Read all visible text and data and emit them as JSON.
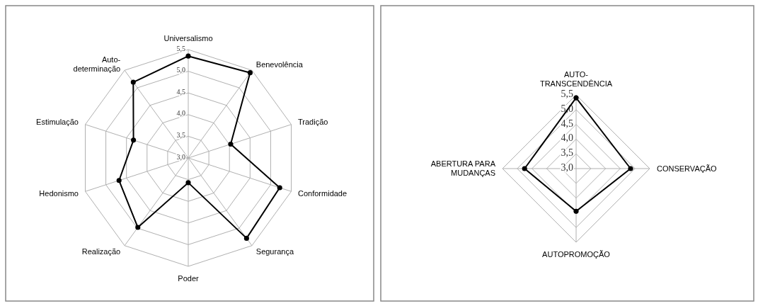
{
  "chart_data": [
    {
      "type": "radar",
      "categories": [
        "Universalismo",
        "Benevolência",
        "Tradição",
        "Conformidade",
        "Segurança",
        "Poder",
        "Realização",
        "Hedonismo",
        "Estimulação",
        "Auto-\ndeterminação"
      ],
      "series": [
        {
          "color": "#000000",
          "values": [
            5.35,
            5.43,
            4.03,
            5.22,
            5.29,
            3.57,
            4.98,
            4.68,
            4.33,
            5.16
          ]
        }
      ],
      "ylim": [
        3,
        5.5
      ],
      "yticks": [
        {
          "value": 3,
          "label": "3,0"
        },
        {
          "value": 3.5,
          "label": "3,5"
        },
        {
          "value": 4,
          "label": "4,0"
        },
        {
          "value": 4.5,
          "label": "4,5"
        },
        {
          "value": 5,
          "label": "5,0"
        },
        {
          "value": 5.5,
          "label": "5,5"
        }
      ],
      "grid": true,
      "marker": "circle"
    },
    {
      "type": "radar",
      "categories": [
        "AUTO-\nTRANSCENDÊNCIA",
        "CONSERVAÇÃO",
        "AUTOPROMOÇÃO",
        "ABERTURA PARA\nMUDANÇAS"
      ],
      "series": [
        {
          "color": "#000000",
          "values": [
            5.4,
            4.85,
            4.45,
            4.75
          ]
        }
      ],
      "ylim": [
        3,
        5.5
      ],
      "yticks": [
        {
          "value": 3,
          "label": "3,0"
        },
        {
          "value": 3.5,
          "label": "3,5"
        },
        {
          "value": 4,
          "label": "4,0"
        },
        {
          "value": 4.5,
          "label": "4,5"
        },
        {
          "value": 5,
          "label": "5,0"
        },
        {
          "value": 5.5,
          "label": "5,5"
        }
      ],
      "grid": true,
      "marker": "circle"
    }
  ]
}
